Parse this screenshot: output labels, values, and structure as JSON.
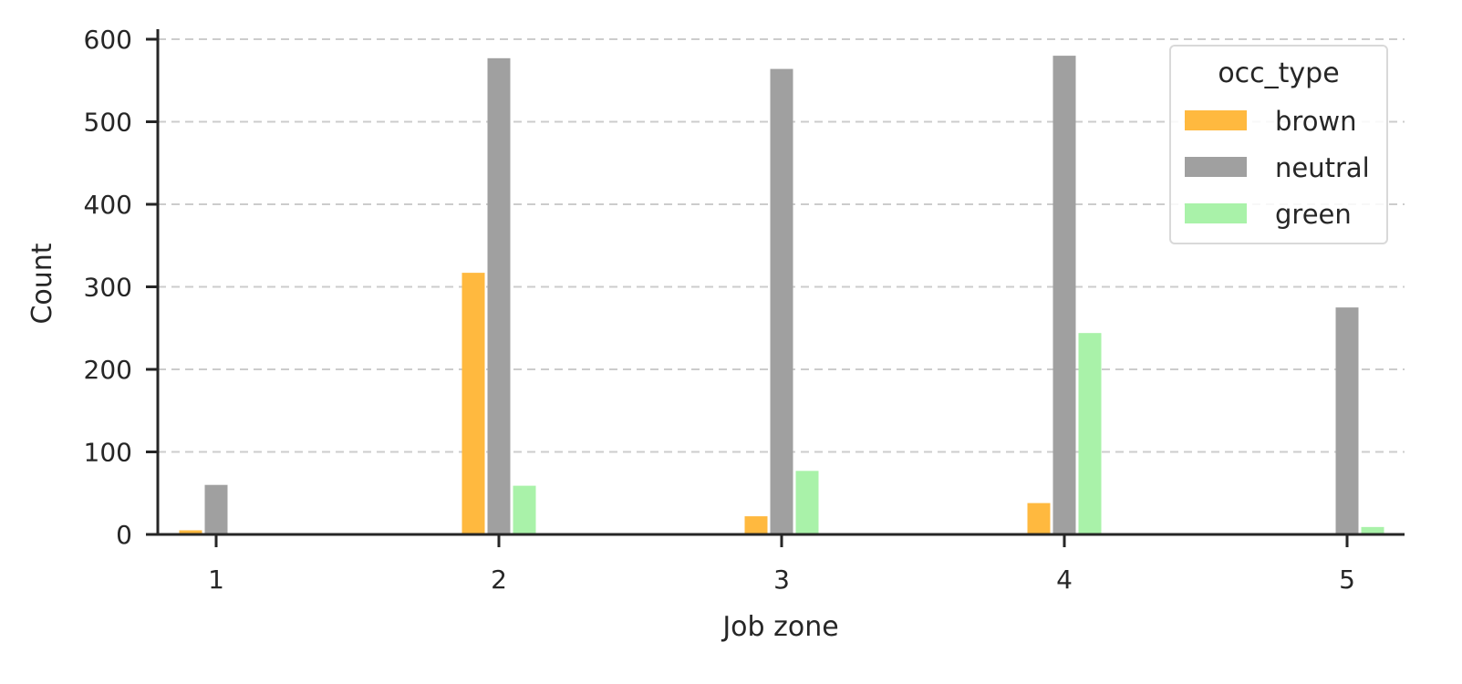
{
  "chart_data": {
    "type": "bar",
    "xlabel": "Job zone",
    "ylabel": "Count",
    "categories": [
      "1",
      "2",
      "3",
      "4",
      "5"
    ],
    "ylim": [
      0,
      610
    ],
    "yticks": [
      0,
      100,
      200,
      300,
      400,
      500,
      600
    ],
    "grid": "y, dashed",
    "legend": {
      "title": "occ_type",
      "placement": "top-right"
    },
    "series": [
      {
        "name": "brown",
        "color": "#FFB93F",
        "values": [
          5,
          317,
          22,
          38,
          0
        ]
      },
      {
        "name": "neutral",
        "color": "#A0A0A0",
        "values": [
          60,
          577,
          564,
          580,
          275
        ]
      },
      {
        "name": "green",
        "color": "#A9F2A9",
        "values": [
          0,
          59,
          77,
          244,
          9
        ]
      }
    ]
  }
}
